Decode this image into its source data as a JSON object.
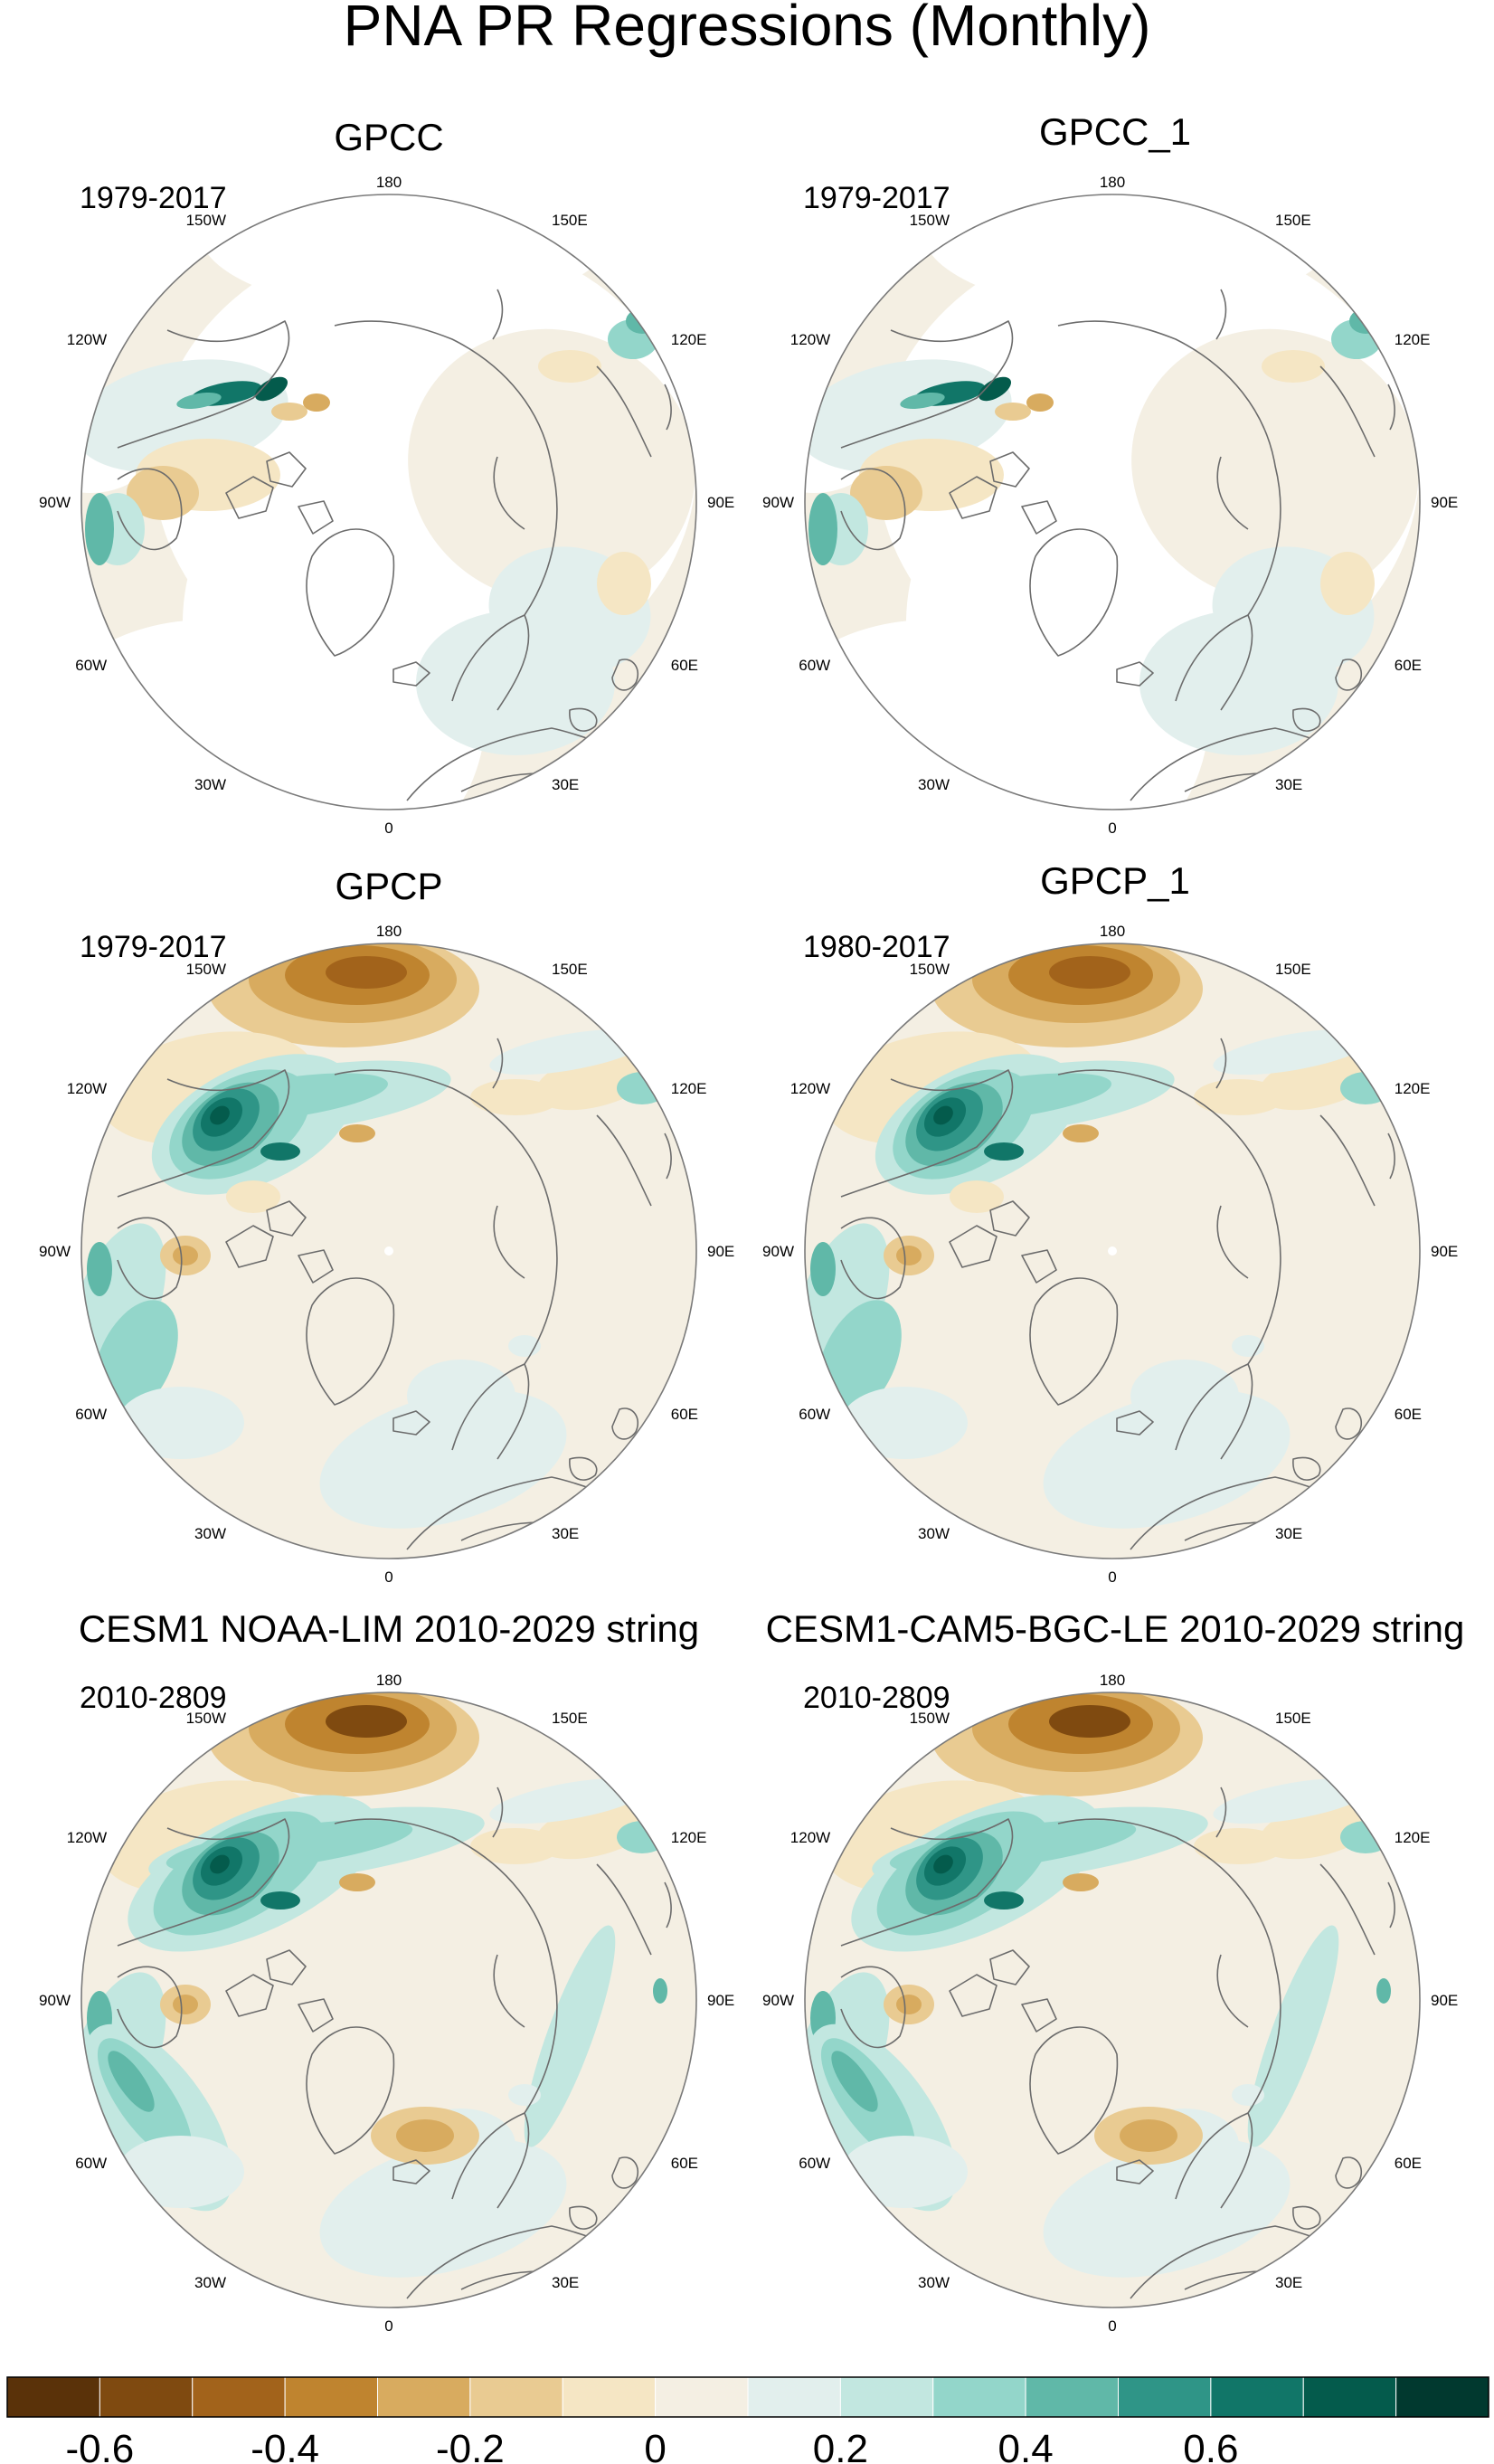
{
  "title": "PNA PR Regressions (Monthly)",
  "lon_labels": [
    "180",
    "150E",
    "120E",
    "90E",
    "60E",
    "30E",
    "0",
    "30W",
    "60W",
    "90W",
    "120W",
    "150W"
  ],
  "panels": [
    {
      "id": "gpcc",
      "title": "GPCC",
      "years": "1979-2017",
      "kind": "station"
    },
    {
      "id": "gpcc-1",
      "title": "GPCC_1",
      "years": "1979-2017",
      "kind": "station"
    },
    {
      "id": "gpcp",
      "title": "GPCP",
      "years": "1979-2017",
      "kind": "satellite"
    },
    {
      "id": "gpcp-1",
      "title": "GPCP_1",
      "years": "1980-2017",
      "kind": "satellite"
    },
    {
      "id": "cesm1-noaa-lim",
      "title": "CESM1 NOAA-LIM 2010-2029 string",
      "years": "2010-2809",
      "kind": "model"
    },
    {
      "id": "cesm1-cam5-bgc-le",
      "title": "CESM1-CAM5-BGC-LE 2010-2029 string",
      "years": "2010-2809",
      "kind": "model"
    }
  ],
  "colorbar": {
    "colors": [
      "#5a3209",
      "#7f4a10",
      "#a2631b",
      "#bf842f",
      "#d8ab5f",
      "#e9cb92",
      "#f5e6c4",
      "#f4efe3",
      "#e2efed",
      "#c2e7e0",
      "#93d6ca",
      "#60b8a8",
      "#2f9587",
      "#117668",
      "#045b4c",
      "#01392f"
    ],
    "tick_labels": [
      "-0.6",
      "-0.4",
      "-0.2",
      "0",
      "0.2",
      "0.4",
      "0.6"
    ],
    "tick_values": [
      -0.6,
      -0.4,
      -0.2,
      0,
      0.2,
      0.4,
      0.6
    ]
  }
}
